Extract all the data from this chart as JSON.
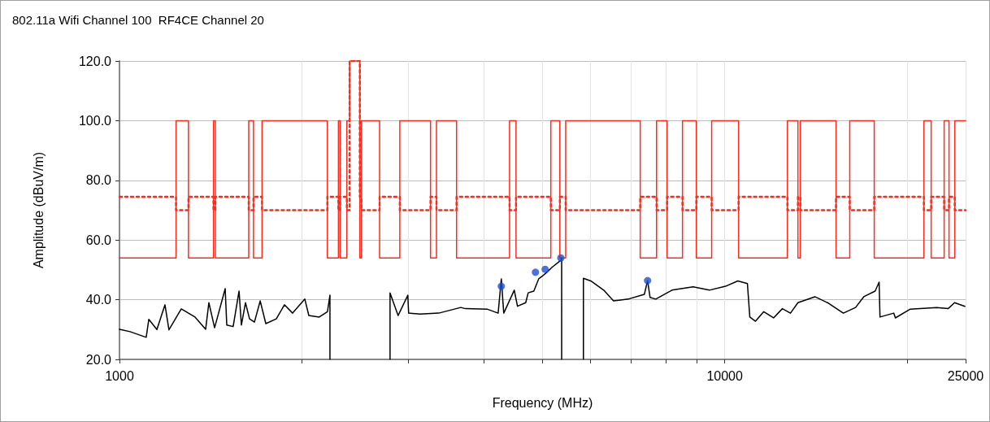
{
  "chart_data": {
    "type": "line",
    "title": "802.11a Wifi Channel 100  RF4CE Channel 20",
    "xlabel": "Frequency (MHz)",
    "ylabel": "Amplitude (dBuV/m)",
    "log": "x",
    "grid": true,
    "xlim": [
      1000,
      25000
    ],
    "xticks": [
      1000,
      {
        "value": 2000,
        "label": null
      },
      {
        "value": 3000,
        "label": null
      },
      {
        "value": 4000,
        "label": null
      },
      {
        "value": 5000,
        "label": null
      },
      {
        "value": 6000,
        "label": null
      },
      {
        "value": 7000,
        "label": null
      },
      {
        "value": 8000,
        "label": null
      },
      {
        "value": 9000,
        "label": null
      },
      10000,
      {
        "value": 20000,
        "label": null
      },
      25000
    ],
    "ylim": [
      20,
      120
    ],
    "yticks": [
      {
        "value": 20,
        "label": "20.0"
      },
      {
        "value": 40,
        "label": "40.0"
      },
      {
        "value": 60,
        "label": "60.0"
      },
      {
        "value": 80,
        "label": "80.0"
      },
      {
        "value": 100,
        "label": "100.0"
      },
      {
        "value": 120,
        "label": "120.0"
      }
    ],
    "series": [
      {
        "type": "step",
        "color": "#ff2a1a",
        "line_style": "solid",
        "marker": "none",
        "x": [
          1000,
          1240,
          1300,
          1430,
          1440,
          1635,
          1665,
          1720,
          2205,
          2300,
          2315,
          2375,
          2400,
          2495,
          2510,
          2690,
          2905,
          3265,
          3340,
          3605,
          4410,
          4520,
          5160,
          5340,
          5460,
          7250,
          7715,
          8030,
          8515,
          8975,
          9515,
          10540,
          12690,
          13210,
          13330,
          15270,
          16090,
          17660,
          21330,
          21930,
          23040,
          23470,
          23990,
          25000
        ],
        "values": [
          54,
          100,
          54,
          100,
          54,
          100,
          54,
          100,
          54,
          100,
          54,
          100,
          120,
          54,
          100,
          54,
          100,
          54,
          100,
          54,
          100,
          54,
          100,
          54,
          100,
          54,
          100,
          54,
          100,
          54,
          100,
          54,
          100,
          54,
          100,
          54,
          100,
          54,
          100,
          54,
          100,
          54,
          100,
          100
        ]
      },
      {
        "type": "step",
        "color": "#ff2a1a",
        "line_style": "dotted",
        "marker": "none",
        "x": [
          1000,
          1240,
          1300,
          1430,
          1440,
          1635,
          1665,
          1720,
          2205,
          2300,
          2315,
          2375,
          2400,
          2495,
          2510,
          2690,
          2905,
          3265,
          3340,
          3605,
          4410,
          4520,
          5160,
          5340,
          5460,
          7250,
          7715,
          8030,
          8515,
          8975,
          9515,
          10540,
          12690,
          13210,
          13330,
          15270,
          16090,
          17660,
          21330,
          21930,
          23040,
          23470,
          23990,
          25000
        ],
        "values": [
          74.5,
          70,
          74.5,
          70,
          74.5,
          70,
          74.5,
          70,
          74.5,
          70,
          74.5,
          70,
          120,
          74.5,
          70,
          74.5,
          70,
          74.5,
          70,
          74.5,
          70,
          74.5,
          70,
          74.5,
          70,
          74.5,
          70,
          74.5,
          70,
          74.5,
          70,
          74.5,
          70,
          74.5,
          70,
          74.5,
          70,
          74.5,
          70,
          74.5,
          70,
          74.5,
          70,
          70
        ]
      },
      {
        "color": "#000000",
        "line_style": "solid",
        "marker": "none",
        "x": [
          1000,
          1041,
          1107,
          1118,
          1153,
          1189,
          1207,
          1265,
          1333,
          1388,
          1405,
          1436,
          1495,
          1504,
          1541,
          1576,
          1590,
          1615,
          1640,
          1671,
          1708,
          1745,
          1816,
          1873,
          1932,
          2024,
          2055,
          2138,
          2206,
          2227,
          2227,
          2500,
          2799,
          2799,
          2886,
          2995,
          3004,
          3138,
          3369,
          3663,
          3731,
          4056,
          4223,
          4274,
          4314,
          4490,
          4545,
          4690,
          4734,
          4837,
          4927,
          4989,
          5082,
          5193,
          5360,
          5377,
          5377,
          5600,
          5841,
          5841,
          6006,
          6310,
          6549,
          6923,
          7365,
          7456,
          7526,
          7691,
          8181,
          8866,
          9431,
          10030,
          10510,
          10900,
          11000,
          11240,
          11600,
          12040,
          12450,
          12840,
          13210,
          14090,
          14850,
          15700,
          16450,
          16970,
          17720,
          17990,
          18050,
          19020,
          19140,
          20230,
          22400,
          23390,
          23970,
          24930
        ],
        "values": [
          30.1,
          29.3,
          27.4,
          33.4,
          30,
          38.3,
          29.9,
          36.9,
          34.2,
          30.1,
          39,
          30.6,
          43.7,
          31.5,
          31,
          42.9,
          31.5,
          39,
          33.6,
          32.5,
          39.6,
          32,
          33.6,
          38.3,
          35.5,
          40.2,
          34.7,
          34.2,
          36,
          41.5,
          20,
          null,
          20,
          42.3,
          34.7,
          41.5,
          35.5,
          35.2,
          35.5,
          37.4,
          37,
          36.8,
          35.5,
          47,
          35.5,
          43.2,
          37.8,
          39,
          42.3,
          42.9,
          47,
          47.8,
          49.2,
          51,
          53.2,
          54,
          20,
          null,
          20,
          47.2,
          46.3,
          43.2,
          39.6,
          40.2,
          41.8,
          46.4,
          40.8,
          40.2,
          43.2,
          44.3,
          43.2,
          44.5,
          46.3,
          45.4,
          34.2,
          32.8,
          36,
          33.9,
          37,
          35.5,
          39,
          41,
          38.8,
          35.5,
          37.4,
          41,
          42.9,
          45.9,
          34.2,
          35.5,
          33.9,
          36.8,
          37.4,
          37,
          39,
          37.8
        ]
      },
      {
        "type": "scatter",
        "color": "#1f4fd8",
        "marker": "circle",
        "x": [
          4274,
          4867,
          5050,
          5360,
          7456
        ],
        "values": [
          44.5,
          49.2,
          50.2,
          54,
          46.4
        ]
      }
    ]
  }
}
